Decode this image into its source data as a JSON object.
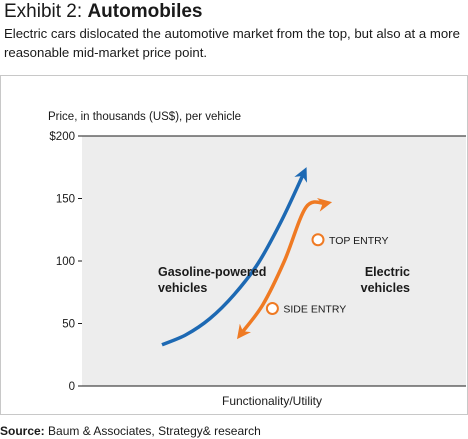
{
  "exhibit_label": "Exhibit 2: ",
  "exhibit_title": "Automobiles",
  "subtitle": "Electric cars dislocated the automotive market from the top, but also at a more reasonable mid-market price point.",
  "source_label": "Source:",
  "source_text": " Baum & Associates, Strategy& research",
  "colors": {
    "gasoline": "#1d69b3",
    "electric": "#ef7a23",
    "plot_bg": "#ededed"
  },
  "chart_data": {
    "type": "line",
    "title": "",
    "xlabel": "Functionality/Utility",
    "ylabel": "Price, in thousands (US$), per vehicle",
    "ylim": [
      0,
      200
    ],
    "yticks": [
      0,
      50,
      100,
      150,
      200
    ],
    "ytick_labels": [
      "0",
      "50",
      "100",
      "150",
      "$200"
    ],
    "xlim": [
      0,
      10
    ],
    "series": [
      {
        "name": "Gasoline-powered vehicles",
        "arrow": "end",
        "x": [
          0.0,
          1.0,
          2.0,
          3.0,
          4.0,
          5.0,
          5.9
        ],
        "y": [
          33,
          41,
          54,
          73,
          98,
          133,
          170
        ]
      },
      {
        "name": "Electric vehicles",
        "arrow": "both",
        "x": [
          3.3,
          4.2,
          5.1,
          6.0,
          6.8
        ],
        "y": [
          42,
          65,
          100,
          143,
          146
        ]
      }
    ],
    "annotations": [
      {
        "label": "TOP ENTRY",
        "x": 6.5,
        "y": 117
      },
      {
        "label": "SIDE ENTRY",
        "x": 4.6,
        "y": 62
      }
    ]
  }
}
